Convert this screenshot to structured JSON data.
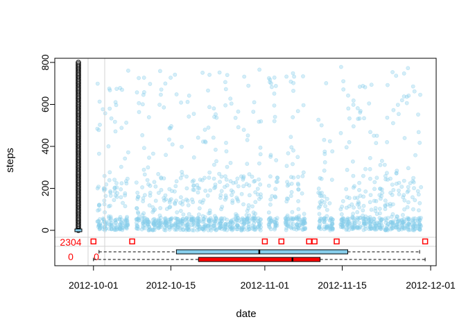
{
  "chart_data": {
    "type": "scatter",
    "title": "",
    "xlabel": "date",
    "ylabel": "steps",
    "x_tick_labels": [
      "2012-10-01",
      "2012-10-15",
      "2012-11-01",
      "2012-11-15",
      "2012-12-01"
    ],
    "x_tick_dates": [
      "2012-10-01",
      "2012-10-15",
      "2012-11-01",
      "2012-11-15",
      "2012-12-01"
    ],
    "xlim": [
      "2012-09-24",
      "2012-12-02"
    ],
    "y_ticks": [
      0,
      200,
      400,
      600,
      800
    ],
    "ylim": [
      0,
      810
    ],
    "grid": true,
    "colors": {
      "points": "#87CEEB",
      "missing": "#FF0000",
      "axis": "#000000",
      "grid": "#D3D3D3",
      "box_observed": "#87CEEB",
      "box_missing": "#FF0000"
    },
    "date_range": {
      "first": "2012-10-01",
      "last": "2012-11-30"
    },
    "missing_date_steps": 0,
    "missing_date_values": [
      "2012-10-01",
      "2012-10-08",
      "2012-11-01",
      "2012-11-04",
      "2012-11-09",
      "2012-11-10",
      "2012-11-14",
      "2012-11-30"
    ],
    "missing_counts": {
      "steps_missing": "2304",
      "both_missing": "0",
      "date_missing": "0"
    },
    "boxplot_observed_dates": {
      "min": "2012-10-02",
      "q1": "2012-10-16",
      "median": "2012-10-31",
      "q3": "2012-11-16",
      "max": "2012-11-29"
    },
    "boxplot_missing_dates": {
      "min": "2012-10-01",
      "q1": "2012-10-20",
      "median": "2012-11-06",
      "q3": "2012-11-11",
      "max": "2012-11-30"
    },
    "steps_with_missing_date": {
      "max": 806
    }
  }
}
